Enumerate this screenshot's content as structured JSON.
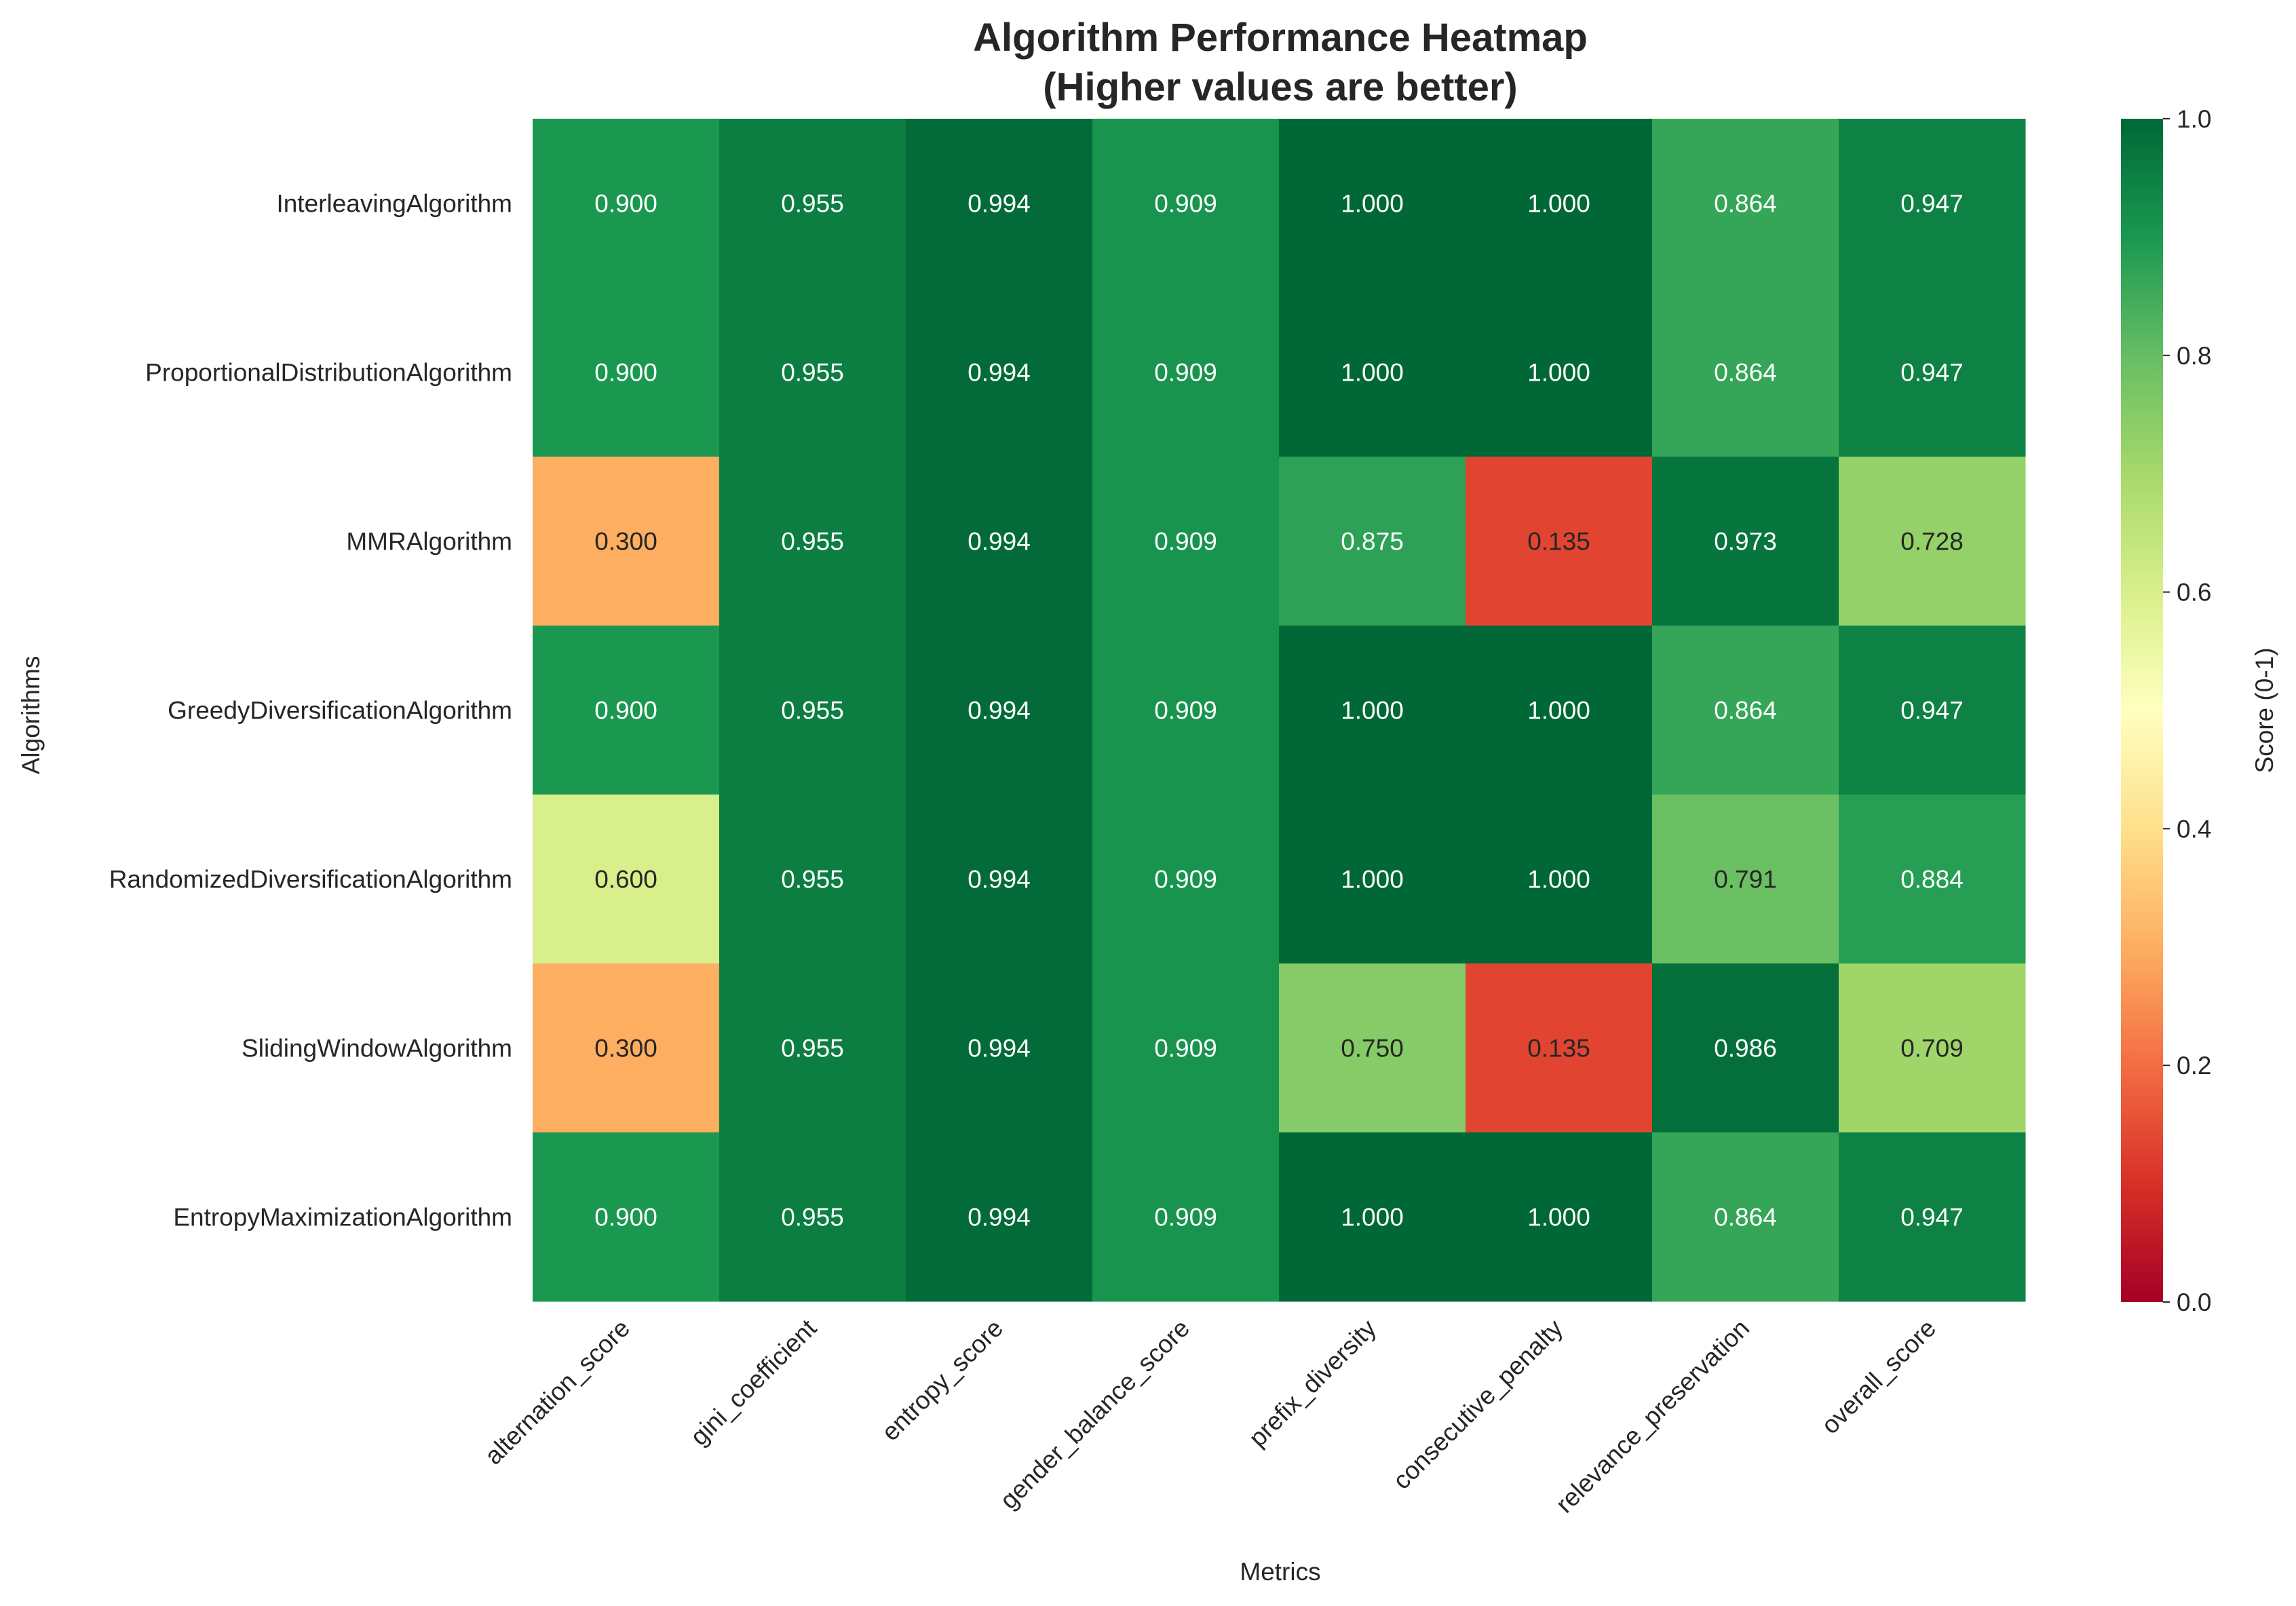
{
  "chart_data": {
    "type": "heatmap",
    "title": "Algorithm Performance Heatmap",
    "subtitle": "(Higher values are better)",
    "xlabel": "Metrics",
    "ylabel": "Algorithms",
    "colorbar_label": "Score (0-1)",
    "colorbar_ticks": [
      "0.0",
      "0.2",
      "0.4",
      "0.6",
      "0.8",
      "1.0"
    ],
    "vmin": 0,
    "vmax": 1,
    "colormap": "RdYlGn",
    "colormap_stops": [
      "#a50026",
      "#d73027",
      "#f46d43",
      "#fdae61",
      "#fee08b",
      "#ffffbf",
      "#d9ef8b",
      "#a6d96a",
      "#66bd63",
      "#1a9850",
      "#006837"
    ],
    "columns": [
      "alternation_score",
      "gini_coefficient",
      "entropy_score",
      "gender_balance_score",
      "prefix_diversity",
      "consecutive_penalty",
      "relevance_preservation",
      "overall_score"
    ],
    "rows": [
      "InterleavingAlgorithm",
      "ProportionalDistributionAlgorithm",
      "MMRAlgorithm",
      "GreedyDiversificationAlgorithm",
      "RandomizedDiversificationAlgorithm",
      "SlidingWindowAlgorithm",
      "EntropyMaximizationAlgorithm"
    ],
    "values": [
      [
        0.9,
        0.955,
        0.994,
        0.909,
        1.0,
        1.0,
        0.864,
        0.947
      ],
      [
        0.9,
        0.955,
        0.994,
        0.909,
        1.0,
        1.0,
        0.864,
        0.947
      ],
      [
        0.3,
        0.955,
        0.994,
        0.909,
        0.875,
        0.135,
        0.973,
        0.728
      ],
      [
        0.9,
        0.955,
        0.994,
        0.909,
        1.0,
        1.0,
        0.864,
        0.947
      ],
      [
        0.6,
        0.955,
        0.994,
        0.909,
        1.0,
        1.0,
        0.791,
        0.884
      ],
      [
        0.3,
        0.955,
        0.994,
        0.909,
        0.75,
        0.135,
        0.986,
        0.709
      ],
      [
        0.9,
        0.955,
        0.994,
        0.909,
        1.0,
        1.0,
        0.864,
        0.947
      ]
    ],
    "labels": [
      [
        "0.900",
        "0.955",
        "0.994",
        "0.909",
        "1.000",
        "1.000",
        "0.864",
        "0.947"
      ],
      [
        "0.900",
        "0.955",
        "0.994",
        "0.909",
        "1.000",
        "1.000",
        "0.864",
        "0.947"
      ],
      [
        "0.300",
        "0.955",
        "0.994",
        "0.909",
        "0.875",
        "0.135",
        "0.973",
        "0.728"
      ],
      [
        "0.900",
        "0.955",
        "0.994",
        "0.909",
        "1.000",
        "1.000",
        "0.864",
        "0.947"
      ],
      [
        "0.600",
        "0.955",
        "0.994",
        "0.909",
        "1.000",
        "1.000",
        "0.791",
        "0.884"
      ],
      [
        "0.300",
        "0.955",
        "0.994",
        "0.909",
        "0.750",
        "0.135",
        "0.986",
        "0.709"
      ],
      [
        "0.900",
        "0.955",
        "0.994",
        "0.909",
        "1.000",
        "1.000",
        "0.864",
        "0.947"
      ]
    ],
    "grid": false
  }
}
